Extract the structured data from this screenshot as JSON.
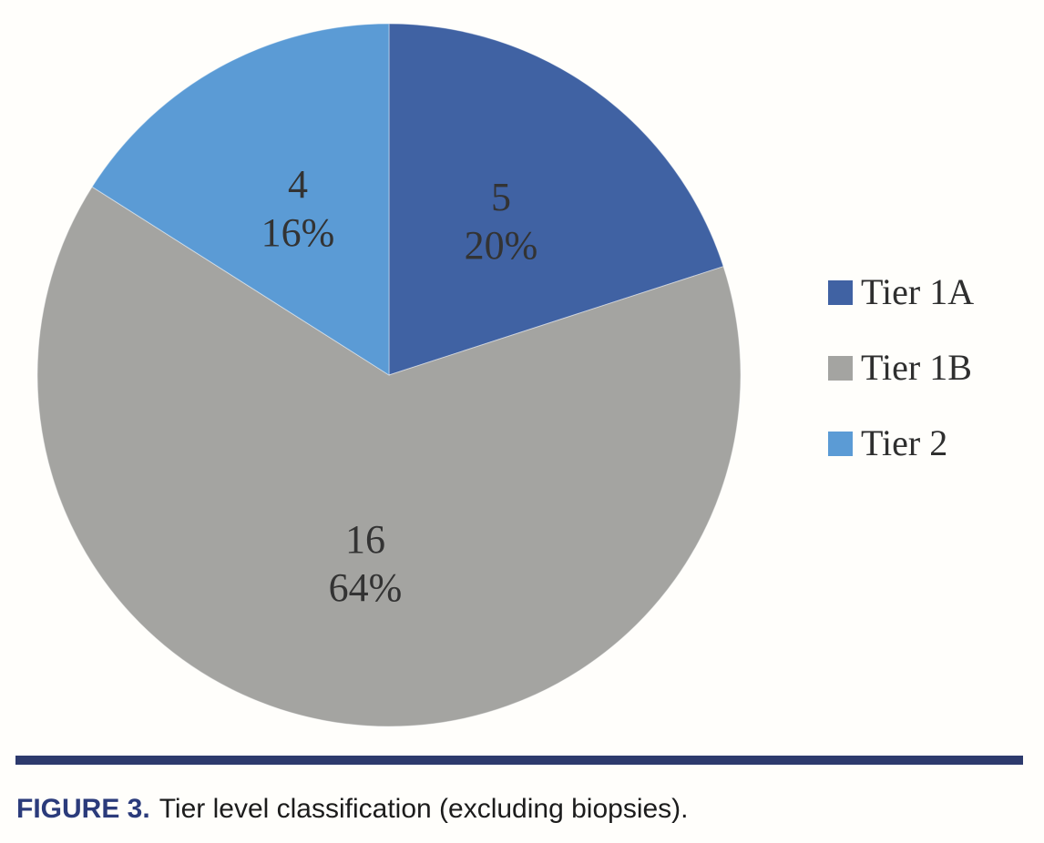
{
  "figure": {
    "caption_label": "FIGURE 3.",
    "caption_text": "Tier level classification (excluding biopsies).",
    "caption_label_color": "#2b3b7b",
    "caption_text_color": "#1c1c1c",
    "rule_color": "#2d3a6d",
    "background_color": "#fffefb"
  },
  "chart_data": {
    "type": "pie",
    "title": "",
    "total": 25,
    "start_angle_deg": 0,
    "direction": "clockwise",
    "legend_position": "right",
    "label_format": "value and percent, stacked",
    "label_color": "#333333",
    "slices": [
      {
        "name": "Tier 1A",
        "value": 5,
        "pct_label": "20%",
        "color": "#4062a3"
      },
      {
        "name": "Tier 1B",
        "value": 16,
        "pct_label": "64%",
        "color": "#a4a4a1"
      },
      {
        "name": "Tier 2",
        "value": 4,
        "pct_label": "16%",
        "color": "#5b9bd5"
      }
    ]
  }
}
